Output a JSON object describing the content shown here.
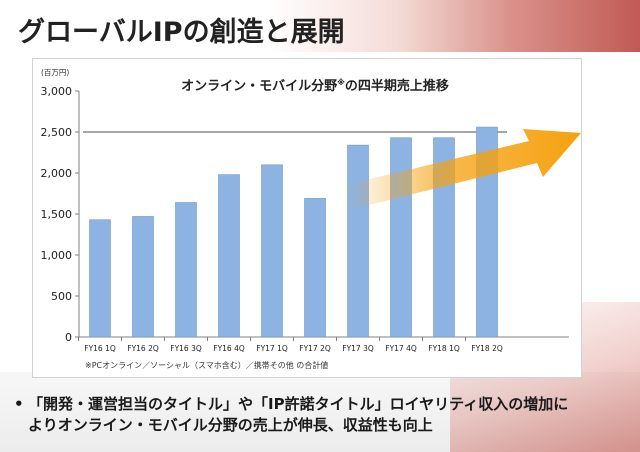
{
  "slide": {
    "title": "グローバルIPの創造と展開",
    "bullet_symbol": "•",
    "bullet_lines": [
      "「開発・運営担当のタイトル」や「IP許諾タイトル」ロイヤリティ収入の増加に",
      "よりオンライン・モバイル分野の売上が伸長、収益性も向上"
    ]
  },
  "chart_data": {
    "type": "bar",
    "title": "オンライン・モバイル分野",
    "title_mark": "※",
    "title_suffix": "の四半期売上推移",
    "unit_label": "(百万円)",
    "footnote": "※PCオンライン／ソーシャル（スマホ含む）／携帯その他 の合計値",
    "categories": [
      "FY16 1Q",
      "FY16 2Q",
      "FY16 3Q",
      "FY16 4Q",
      "FY17 1Q",
      "FY17 2Q",
      "FY17 3Q",
      "FY17 4Q",
      "FY18 1Q",
      "FY18 2Q"
    ],
    "values": [
      1430,
      1470,
      1640,
      1980,
      2100,
      1690,
      2340,
      2430,
      2430,
      2560
    ],
    "ylim": [
      0,
      3000
    ],
    "yticks": [
      0,
      500,
      1000,
      1500,
      2000,
      2500,
      3000
    ],
    "ytick_labels": [
      "0",
      "500",
      "1,000",
      "1,500",
      "2,000",
      "2,500",
      "3,000"
    ],
    "reference_line": 2500,
    "trend_arrow": true,
    "grid": false,
    "colors": {
      "bar": "#8db3e2",
      "bar_stroke": "#6f97c6",
      "reference_line": "#a6a6a6",
      "arrow": "#f5a10f"
    }
  }
}
